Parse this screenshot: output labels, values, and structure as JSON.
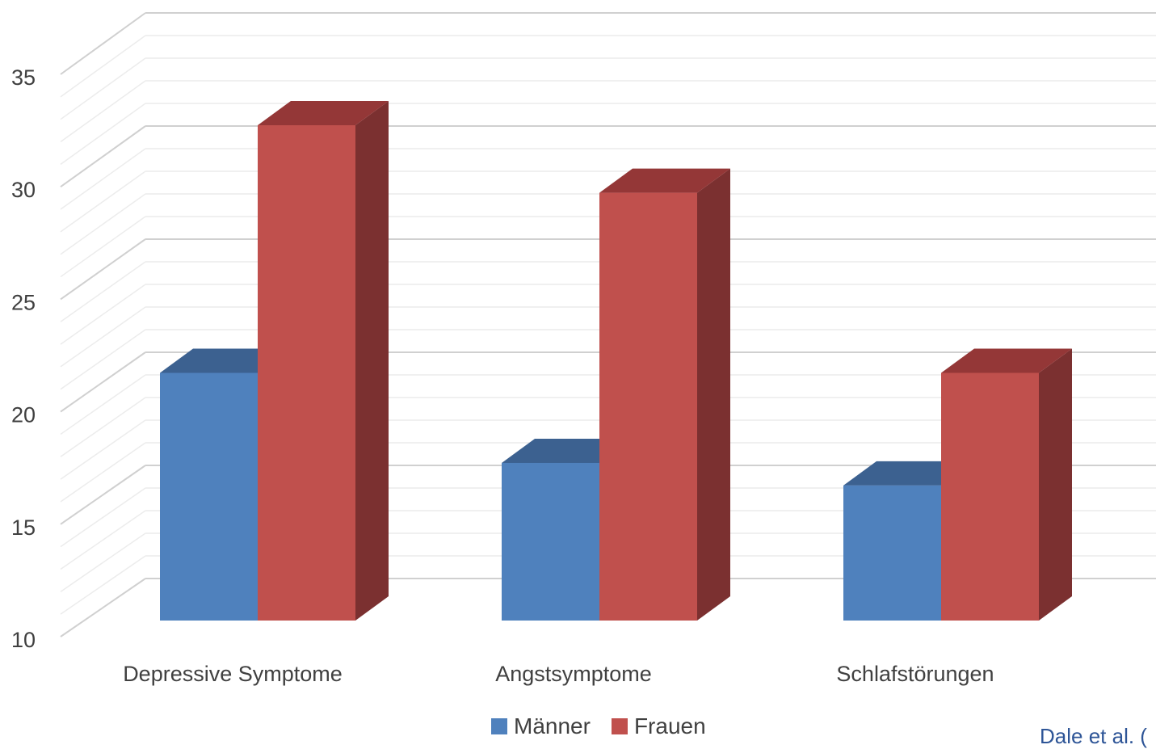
{
  "chart_data": {
    "type": "bar",
    "categories": [
      "Depressive Symptome",
      "Angstsymptome",
      "Schlafstörungen"
    ],
    "series": [
      {
        "name": "Männer",
        "values": [
          21,
          17,
          16
        ],
        "color": "#4f81bd"
      },
      {
        "name": "Frauen",
        "values": [
          32,
          29,
          21
        ],
        "color": "#c0504d"
      }
    ],
    "ylim": [
      10,
      35
    ],
    "yticks": [
      10,
      15,
      20,
      25,
      30,
      35
    ],
    "grid": true,
    "legend": "bottom-center",
    "title": "",
    "xlabel": "",
    "ylabel": ""
  },
  "citation": "Dale et al. ("
}
